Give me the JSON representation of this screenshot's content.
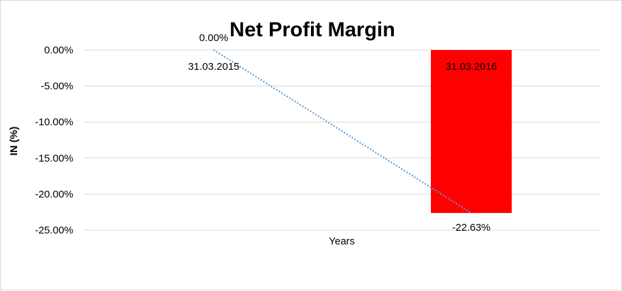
{
  "chart_data": {
    "type": "bar",
    "title": "Net Profit Margin",
    "xlabel": "Years",
    "ylabel": "IN (%)",
    "categories": [
      "31.03.2015",
      "31.03.2016"
    ],
    "series": [
      {
        "values": [
          0.0,
          -22.63
        ],
        "data_labels": [
          "0.00%",
          "-22.63%"
        ]
      }
    ],
    "ylim": [
      -25,
      0
    ],
    "yticks": [
      0,
      -5,
      -10,
      -15,
      -20,
      -25
    ],
    "ytick_labels": [
      "0.00%",
      "-5.00%",
      "-10.00%",
      "-15.00%",
      "-20.00%",
      "-25.00%"
    ],
    "grid": true,
    "bar_color": "#ff0000",
    "trendline": {
      "style": "dotted",
      "color": "#5b9bd5"
    }
  }
}
